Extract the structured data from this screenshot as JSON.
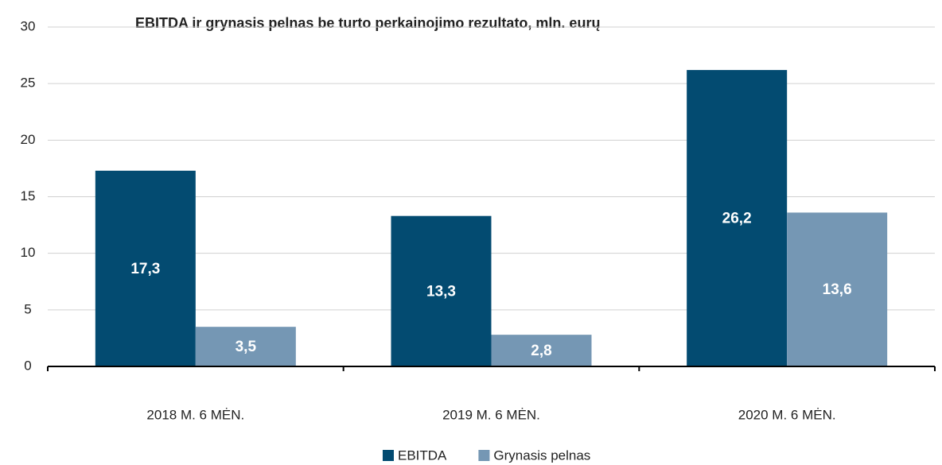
{
  "chart_data": {
    "type": "bar",
    "title": "EBITDA ir grynasis pelnas be turto perkainojimo rezultato, mln. eurų",
    "categories": [
      "2018 M. 6 MĖN.",
      "2019 M. 6 MĖN.",
      "2020 M. 6 MĖN."
    ],
    "series": [
      {
        "name": "EBITDA",
        "color": "#034b71",
        "values": [
          17.3,
          13.3,
          26.2
        ],
        "value_labels": [
          "17,3",
          "13,3",
          "26,2"
        ]
      },
      {
        "name": "Grynasis pelnas",
        "color": "#7597b4",
        "values": [
          3.5,
          2.8,
          13.6
        ],
        "value_labels": [
          "3,5",
          "2,8",
          "13,6"
        ]
      }
    ],
    "ylim": [
      0,
      30
    ],
    "yticks": [
      0,
      5,
      10,
      15,
      20,
      25,
      30
    ],
    "grid": true,
    "legend": "bottom"
  }
}
